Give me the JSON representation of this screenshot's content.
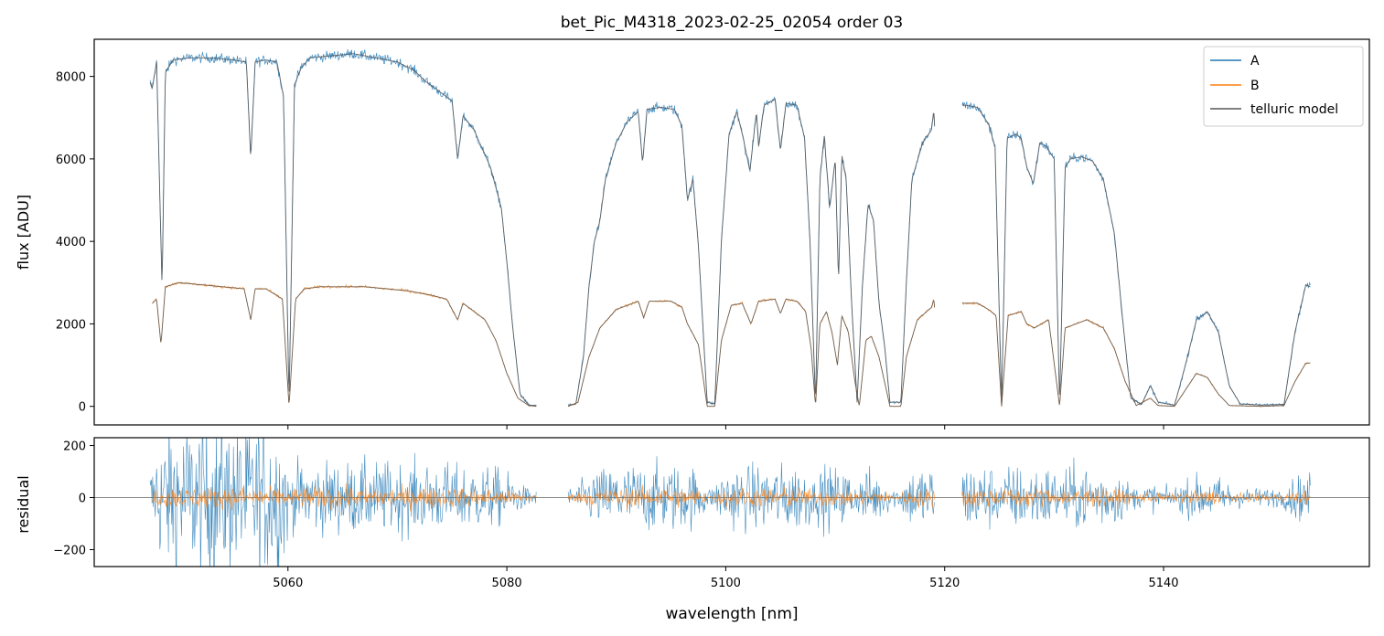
{
  "title": "bet_Pic_M4318_2023-02-25_02054  order 03",
  "chart_data": [
    {
      "type": "line",
      "panel": "top",
      "ylabel": "flux [ADU]",
      "xlim": [
        5042.3,
        5158.8
      ],
      "ylim": [
        -450,
        8900
      ],
      "yticks": [
        0,
        2000,
        4000,
        6000,
        8000
      ],
      "legend": {
        "placement": "top-right",
        "entries": [
          "A",
          "B",
          "telluric model"
        ]
      },
      "series": [
        {
          "name": "A",
          "color": "#1f77b4",
          "segments": [
            [
              [
                5047.4,
                7850
              ],
              [
                5047.6,
                7700
              ],
              [
                5048,
                8350
              ],
              [
                5048.5,
                2850
              ],
              [
                5048.8,
                8100
              ],
              [
                5049.5,
                8400
              ],
              [
                5051,
                8450
              ],
              [
                5053,
                8450
              ],
              [
                5055,
                8400
              ],
              [
                5056.2,
                8350
              ],
              [
                5056.6,
                6000
              ],
              [
                5057,
                8350
              ],
              [
                5058,
                8400
              ],
              [
                5059,
                8350
              ],
              [
                5059.6,
                7500
              ],
              [
                5060.1,
                50
              ],
              [
                5060.6,
                7800
              ],
              [
                5061.2,
                8200
              ],
              [
                5062,
                8450
              ],
              [
                5064,
                8500
              ],
              [
                5066,
                8550
              ],
              [
                5068,
                8450
              ],
              [
                5070,
                8350
              ],
              [
                5071.5,
                8150
              ],
              [
                5072.5,
                7900
              ],
              [
                5073.5,
                7700
              ],
              [
                5075,
                7400
              ],
              [
                5075.5,
                6000
              ],
              [
                5076,
                7050
              ],
              [
                5077,
                6700
              ],
              [
                5078,
                6100
              ],
              [
                5078.5,
                5800
              ],
              [
                5079.5,
                4800
              ],
              [
                5080,
                3500
              ],
              [
                5080.5,
                2000
              ],
              [
                5081.2,
                300
              ],
              [
                5082,
                30
              ],
              [
                5082.7,
                20
              ]
            ],
            [
              [
                5085.6,
                30
              ],
              [
                5086.3,
                50
              ],
              [
                5087,
                1200
              ],
              [
                5087.5,
                2900
              ],
              [
                5088,
                4000
              ],
              [
                5088.5,
                4500
              ],
              [
                5089,
                5500
              ],
              [
                5090,
                6400
              ],
              [
                5091,
                6900
              ],
              [
                5092,
                7150
              ],
              [
                5092.4,
                5900
              ],
              [
                5092.8,
                7200
              ],
              [
                5094,
                7250
              ],
              [
                5095.3,
                7200
              ],
              [
                5096,
                6800
              ],
              [
                5096.5,
                5000
              ],
              [
                5097,
                5500
              ],
              [
                5097.5,
                3900
              ],
              [
                5098.3,
                100
              ],
              [
                5099,
                60
              ],
              [
                5099.6,
                4000
              ],
              [
                5100.3,
                6600
              ],
              [
                5101,
                7150
              ],
              [
                5101.6,
                6500
              ],
              [
                5102.2,
                5700
              ],
              [
                5102.8,
                7150
              ],
              [
                5103,
                6300
              ],
              [
                5103.5,
                7300
              ],
              [
                5104.5,
                7450
              ],
              [
                5105,
                6200
              ],
              [
                5105.5,
                7350
              ],
              [
                5106.5,
                7300
              ],
              [
                5107.2,
                6500
              ],
              [
                5107.7,
                4000
              ],
              [
                5108.2,
                50
              ],
              [
                5108.6,
                5500
              ],
              [
                5109,
                6550
              ],
              [
                5109.5,
                4800
              ],
              [
                5110,
                6000
              ],
              [
                5110.3,
                3000
              ],
              [
                5110.6,
                6100
              ],
              [
                5111,
                5500
              ],
              [
                5111.5,
                2500
              ],
              [
                5112,
                100
              ],
              [
                5112.5,
                3000
              ],
              [
                5113,
                4900
              ],
              [
                5113.5,
                4500
              ],
              [
                5114,
                2500
              ],
              [
                5114.5,
                1500
              ],
              [
                5115,
                100
              ],
              [
                5116,
                100
              ],
              [
                5116.5,
                3000
              ],
              [
                5117,
                5500
              ],
              [
                5118,
                6400
              ],
              [
                5118.8,
                6700
              ],
              [
                5119,
                7200
              ],
              [
                5119.1,
                6700
              ]
            ],
            [
              [
                5121.6,
                7300
              ],
              [
                5122,
                7300
              ],
              [
                5123,
                7250
              ],
              [
                5124,
                6850
              ],
              [
                5124.6,
                6300
              ],
              [
                5125.2,
                50
              ],
              [
                5125.7,
                6500
              ],
              [
                5126.5,
                6600
              ],
              [
                5127,
                6500
              ],
              [
                5127.5,
                5800
              ],
              [
                5128.1,
                5400
              ],
              [
                5128.7,
                6400
              ],
              [
                5129.3,
                6300
              ],
              [
                5130,
                6000
              ],
              [
                5130.5,
                50
              ],
              [
                5131,
                5800
              ],
              [
                5131.5,
                6000
              ],
              [
                5132.5,
                6050
              ],
              [
                5133.5,
                5950
              ],
              [
                5134.5,
                5500
              ],
              [
                5135.5,
                4200
              ],
              [
                5136.3,
                2000
              ],
              [
                5137,
                200
              ],
              [
                5138,
                50
              ],
              [
                5138.8,
                500
              ],
              [
                5139.5,
                100
              ],
              [
                5141,
                30
              ],
              [
                5142,
                1000
              ],
              [
                5143,
                2100
              ],
              [
                5144,
                2300
              ],
              [
                5145,
                1800
              ],
              [
                5146,
                500
              ],
              [
                5147,
                60
              ],
              [
                5149,
                30
              ],
              [
                5151,
                50
              ],
              [
                5152,
                1800
              ],
              [
                5153,
                2950
              ],
              [
                5153.4,
                2900
              ]
            ]
          ]
        },
        {
          "name": "B",
          "color": "#ff7f0e",
          "segments": [
            [
              [
                5047.6,
                2500
              ],
              [
                5048,
                2600
              ],
              [
                5048.4,
                1500
              ],
              [
                5048.8,
                2900
              ],
              [
                5050,
                3000
              ],
              [
                5052,
                2950
              ],
              [
                5054,
                2900
              ],
              [
                5056,
                2850
              ],
              [
                5056.6,
                2100
              ],
              [
                5057,
                2850
              ],
              [
                5058,
                2850
              ],
              [
                5059.5,
                2600
              ],
              [
                5060.1,
                0
              ],
              [
                5060.7,
                2600
              ],
              [
                5061.5,
                2850
              ],
              [
                5063,
                2900
              ],
              [
                5065,
                2900
              ],
              [
                5067,
                2900
              ],
              [
                5069,
                2850
              ],
              [
                5071,
                2800
              ],
              [
                5073,
                2700
              ],
              [
                5074.5,
                2600
              ],
              [
                5075.5,
                2100
              ],
              [
                5076,
                2500
              ],
              [
                5077,
                2300
              ],
              [
                5078,
                2100
              ],
              [
                5079,
                1600
              ],
              [
                5080,
                800
              ],
              [
                5081,
                200
              ],
              [
                5082,
                20
              ],
              [
                5082.7,
                0
              ]
            ],
            [
              [
                5085.6,
                0
              ],
              [
                5086.5,
                100
              ],
              [
                5087.5,
                1200
              ],
              [
                5088.5,
                1900
              ],
              [
                5090,
                2350
              ],
              [
                5092,
                2550
              ],
              [
                5092.5,
                2150
              ],
              [
                5093,
                2550
              ],
              [
                5095,
                2550
              ],
              [
                5096,
                2400
              ],
              [
                5096.5,
                2000
              ],
              [
                5097.5,
                1500
              ],
              [
                5098.3,
                0
              ],
              [
                5099,
                0
              ],
              [
                5099.6,
                1600
              ],
              [
                5100.5,
                2450
              ],
              [
                5101.5,
                2500
              ],
              [
                5102.3,
                2000
              ],
              [
                5103,
                2550
              ],
              [
                5104.5,
                2600
              ],
              [
                5105,
                2250
              ],
              [
                5105.5,
                2600
              ],
              [
                5106.5,
                2550
              ],
              [
                5107.3,
                2300
              ],
              [
                5107.8,
                1400
              ],
              [
                5108.2,
                0
              ],
              [
                5108.6,
                2000
              ],
              [
                5109.2,
                2300
              ],
              [
                5109.7,
                1800
              ],
              [
                5110.2,
                1000
              ],
              [
                5110.6,
                2200
              ],
              [
                5111.2,
                1800
              ],
              [
                5111.8,
                600
              ],
              [
                5112.2,
                0
              ],
              [
                5112.8,
                1600
              ],
              [
                5113.3,
                1700
              ],
              [
                5114,
                1200
              ],
              [
                5115,
                0
              ],
              [
                5116,
                0
              ],
              [
                5116.5,
                1200
              ],
              [
                5117.5,
                2100
              ],
              [
                5118.8,
                2400
              ],
              [
                5119,
                2600
              ],
              [
                5119.1,
                2350
              ]
            ],
            [
              [
                5121.6,
                2500
              ],
              [
                5123,
                2500
              ],
              [
                5124,
                2350
              ],
              [
                5124.7,
                2200
              ],
              [
                5125.2,
                0
              ],
              [
                5125.8,
                2200
              ],
              [
                5127,
                2300
              ],
              [
                5127.5,
                2000
              ],
              [
                5128.2,
                1900
              ],
              [
                5129.5,
                2100
              ],
              [
                5130.5,
                0
              ],
              [
                5131,
                1900
              ],
              [
                5133,
                2100
              ],
              [
                5134.5,
                1900
              ],
              [
                5135.5,
                1400
              ],
              [
                5136.5,
                600
              ],
              [
                5137.5,
                20
              ],
              [
                5138.8,
                200
              ],
              [
                5139.5,
                20
              ],
              [
                5141,
                0
              ],
              [
                5142,
                400
              ],
              [
                5143,
                800
              ],
              [
                5144,
                700
              ],
              [
                5145,
                300
              ],
              [
                5146,
                20
              ],
              [
                5149,
                0
              ],
              [
                5151,
                20
              ],
              [
                5152,
                600
              ],
              [
                5153,
                1050
              ],
              [
                5153.4,
                1050
              ]
            ]
          ]
        },
        {
          "name": "telluric model",
          "color": "#555555",
          "segments": []
        }
      ]
    },
    {
      "type": "line",
      "panel": "bottom",
      "xlabel": "wavelength [nm]",
      "ylabel": "residual",
      "xlim": [
        5042.3,
        5158.8
      ],
      "ylim": [
        -265,
        230
      ],
      "yticks": [
        -200,
        0,
        200
      ],
      "xticks": [
        5060,
        5080,
        5100,
        5120,
        5140
      ],
      "segments_x": [
        [
          5047.6,
          5082.7
        ],
        [
          5085.6,
          5119.1
        ],
        [
          5121.6,
          5153.4
        ]
      ]
    }
  ]
}
